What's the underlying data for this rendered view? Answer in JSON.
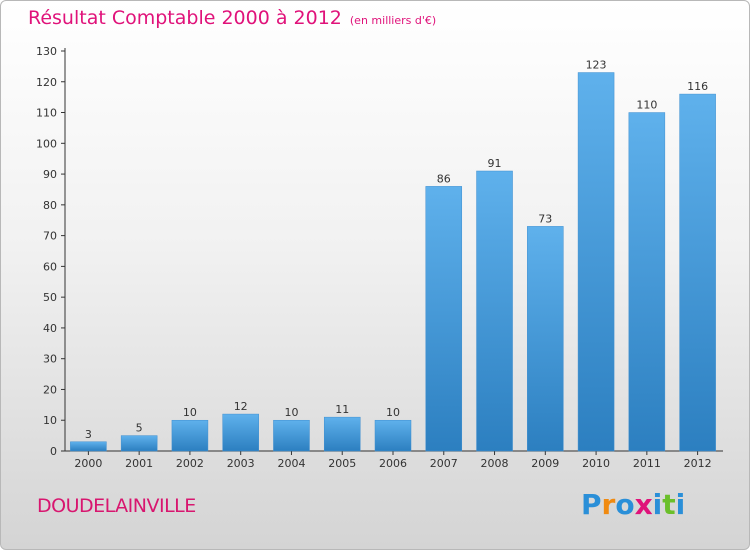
{
  "title": "Résultat Comptable 2000 à 2012",
  "subtitle": "(en milliers d'€)",
  "town": "DOUDELAINVILLE",
  "logo": {
    "letters": [
      "P",
      "r",
      "o",
      "x",
      "i",
      "t",
      "i"
    ],
    "colors": [
      "#2a8fd8",
      "#f08a10",
      "#2a8fd8",
      "#e0127a",
      "#2a8fd8",
      "#6bbf2a",
      "#2a8fd8"
    ]
  },
  "colors": {
    "bar_top": "#5fb1ec",
    "bar_bottom": "#2c7fc0",
    "title": "#e0127a"
  },
  "chart_data": {
    "type": "bar",
    "categories": [
      "2000",
      "2001",
      "2002",
      "2003",
      "2004",
      "2005",
      "2006",
      "2007",
      "2008",
      "2009",
      "2010",
      "2011",
      "2012"
    ],
    "values": [
      3,
      5,
      10,
      12,
      10,
      11,
      10,
      86,
      91,
      73,
      123,
      110,
      116
    ],
    "data_labels": [
      "3",
      "5",
      "10",
      "12",
      "10",
      "11",
      "10",
      "86",
      "91",
      "73",
      "123",
      "110",
      "116"
    ],
    "ylim": [
      0,
      130
    ],
    "yticks": [
      0,
      10,
      20,
      30,
      40,
      50,
      60,
      70,
      80,
      90,
      100,
      110,
      120,
      130
    ],
    "grid": false,
    "xlabel": "",
    "ylabel": ""
  }
}
